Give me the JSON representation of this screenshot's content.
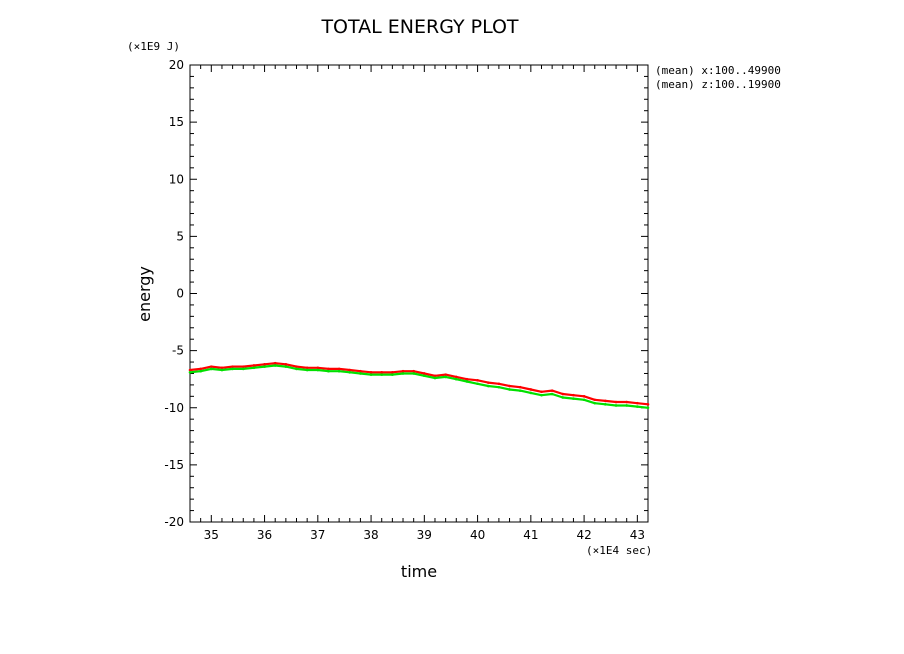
{
  "chart_data": {
    "type": "line",
    "title": "TOTAL ENERGY PLOT",
    "xlabel": "time",
    "ylabel": "energy",
    "x_unit_label": "(×1E4 sec)",
    "y_unit_label": "(×1E9 J)",
    "annotations": [
      "(mean) x:100..49900",
      "(mean) z:100..19900"
    ],
    "xlim": [
      34.6,
      43.2
    ],
    "ylim": [
      -20,
      20
    ],
    "x_ticks": [
      "35",
      "36",
      "37",
      "38",
      "39",
      "40",
      "41",
      "42",
      "43"
    ],
    "y_ticks": [
      "20",
      "15",
      "10",
      "5",
      "0",
      "-5",
      "-10",
      "-15",
      "-20"
    ],
    "grid": false,
    "series": [
      {
        "color": "#ff0000",
        "x": [
          34.6,
          34.8,
          35.0,
          35.2,
          35.4,
          35.6,
          35.8,
          36.0,
          36.2,
          36.4,
          36.6,
          36.8,
          37.0,
          37.2,
          37.4,
          37.6,
          37.8,
          38.0,
          38.2,
          38.4,
          38.6,
          38.8,
          39.0,
          39.2,
          39.4,
          39.6,
          39.8,
          40.0,
          40.2,
          40.4,
          40.6,
          40.8,
          41.0,
          41.2,
          41.4,
          41.6,
          41.8,
          42.0,
          42.2,
          42.4,
          42.6,
          42.8,
          43.0,
          43.2
        ],
        "values": [
          -6.7,
          -6.6,
          -6.4,
          -6.5,
          -6.4,
          -6.4,
          -6.3,
          -6.2,
          -6.1,
          -6.2,
          -6.4,
          -6.5,
          -6.5,
          -6.6,
          -6.6,
          -6.7,
          -6.8,
          -6.9,
          -6.9,
          -6.9,
          -6.8,
          -6.8,
          -7.0,
          -7.2,
          -7.1,
          -7.3,
          -7.5,
          -7.6,
          -7.8,
          -7.9,
          -8.1,
          -8.2,
          -8.4,
          -8.6,
          -8.5,
          -8.8,
          -8.9,
          -9.0,
          -9.3,
          -9.4,
          -9.5,
          -9.5,
          -9.6,
          -9.7
        ]
      },
      {
        "color": "#00e000",
        "x": [
          34.6,
          34.8,
          35.0,
          35.2,
          35.4,
          35.6,
          35.8,
          36.0,
          36.2,
          36.4,
          36.6,
          36.8,
          37.0,
          37.2,
          37.4,
          37.6,
          37.8,
          38.0,
          38.2,
          38.4,
          38.6,
          38.8,
          39.0,
          39.2,
          39.4,
          39.6,
          39.8,
          40.0,
          40.2,
          40.4,
          40.6,
          40.8,
          41.0,
          41.2,
          41.4,
          41.6,
          41.8,
          42.0,
          42.2,
          42.4,
          42.6,
          42.8,
          43.0,
          43.2
        ],
        "values": [
          -6.9,
          -6.8,
          -6.6,
          -6.7,
          -6.6,
          -6.6,
          -6.5,
          -6.4,
          -6.3,
          -6.4,
          -6.6,
          -6.7,
          -6.7,
          -6.8,
          -6.8,
          -6.9,
          -7.0,
          -7.1,
          -7.1,
          -7.1,
          -7.0,
          -7.0,
          -7.2,
          -7.4,
          -7.3,
          -7.5,
          -7.7,
          -7.9,
          -8.1,
          -8.2,
          -8.4,
          -8.5,
          -8.7,
          -8.9,
          -8.8,
          -9.1,
          -9.2,
          -9.3,
          -9.6,
          -9.7,
          -9.8,
          -9.8,
          -9.9,
          -10.0
        ]
      }
    ]
  }
}
